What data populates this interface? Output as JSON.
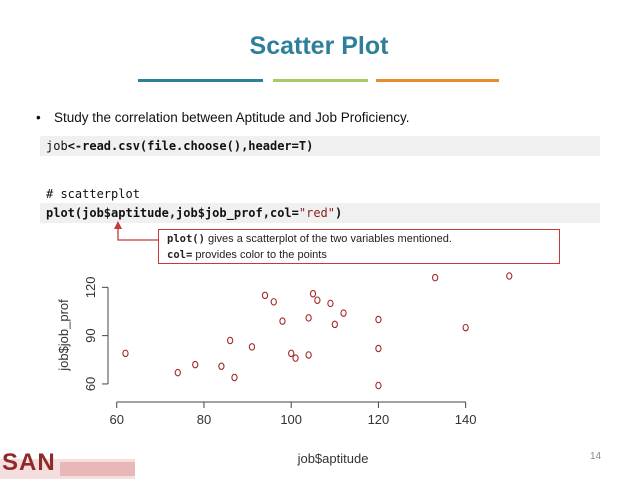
{
  "slide": {
    "title": "Scatter Plot",
    "bullet": "Study the correlation between Aptitude and Job Proficiency.",
    "bullet_mark": "•",
    "page_number": "14",
    "logo_text": "SAN",
    "accent_colors": [
      "#2f7f9b",
      "#a6c96a",
      "#e98a2c"
    ]
  },
  "code": {
    "line1": {
      "var": "job",
      "rest": "<-read.csv(file.choose(),header=T)"
    },
    "comment": "# scatterplot",
    "line2": {
      "fn": "plot(job$aptitude,job$job_prof,col=",
      "str": "\"red\"",
      "end": ")"
    }
  },
  "callout": {
    "line1_code": "plot()",
    "line1_text": " gives a scatterplot of the two variables mentioned.",
    "line2_code": "col=",
    "line2_text": " provides color to the points"
  },
  "chart_data": {
    "type": "scatter",
    "xlabel": "job$aptitude",
    "ylabel": "job$job_prof",
    "xlim": [
      58,
      152
    ],
    "ylim": [
      55,
      132
    ],
    "xticks": [
      60,
      80,
      100,
      120,
      140
    ],
    "yticks": [
      60,
      90,
      120
    ],
    "point_color": "#a52a2a",
    "points": [
      [
        62,
        79
      ],
      [
        74,
        67
      ],
      [
        78,
        72
      ],
      [
        84,
        71
      ],
      [
        86,
        87
      ],
      [
        87,
        64
      ],
      [
        91,
        83
      ],
      [
        94,
        115
      ],
      [
        96,
        111
      ],
      [
        98,
        99
      ],
      [
        100,
        79
      ],
      [
        101,
        76
      ],
      [
        104,
        101
      ],
      [
        104,
        78
      ],
      [
        105,
        116
      ],
      [
        106,
        112
      ],
      [
        109,
        110
      ],
      [
        110,
        97
      ],
      [
        112,
        104
      ],
      [
        120,
        100
      ],
      [
        120,
        82
      ],
      [
        120,
        59
      ],
      [
        133,
        126
      ],
      [
        140,
        95
      ],
      [
        150,
        127
      ]
    ]
  }
}
